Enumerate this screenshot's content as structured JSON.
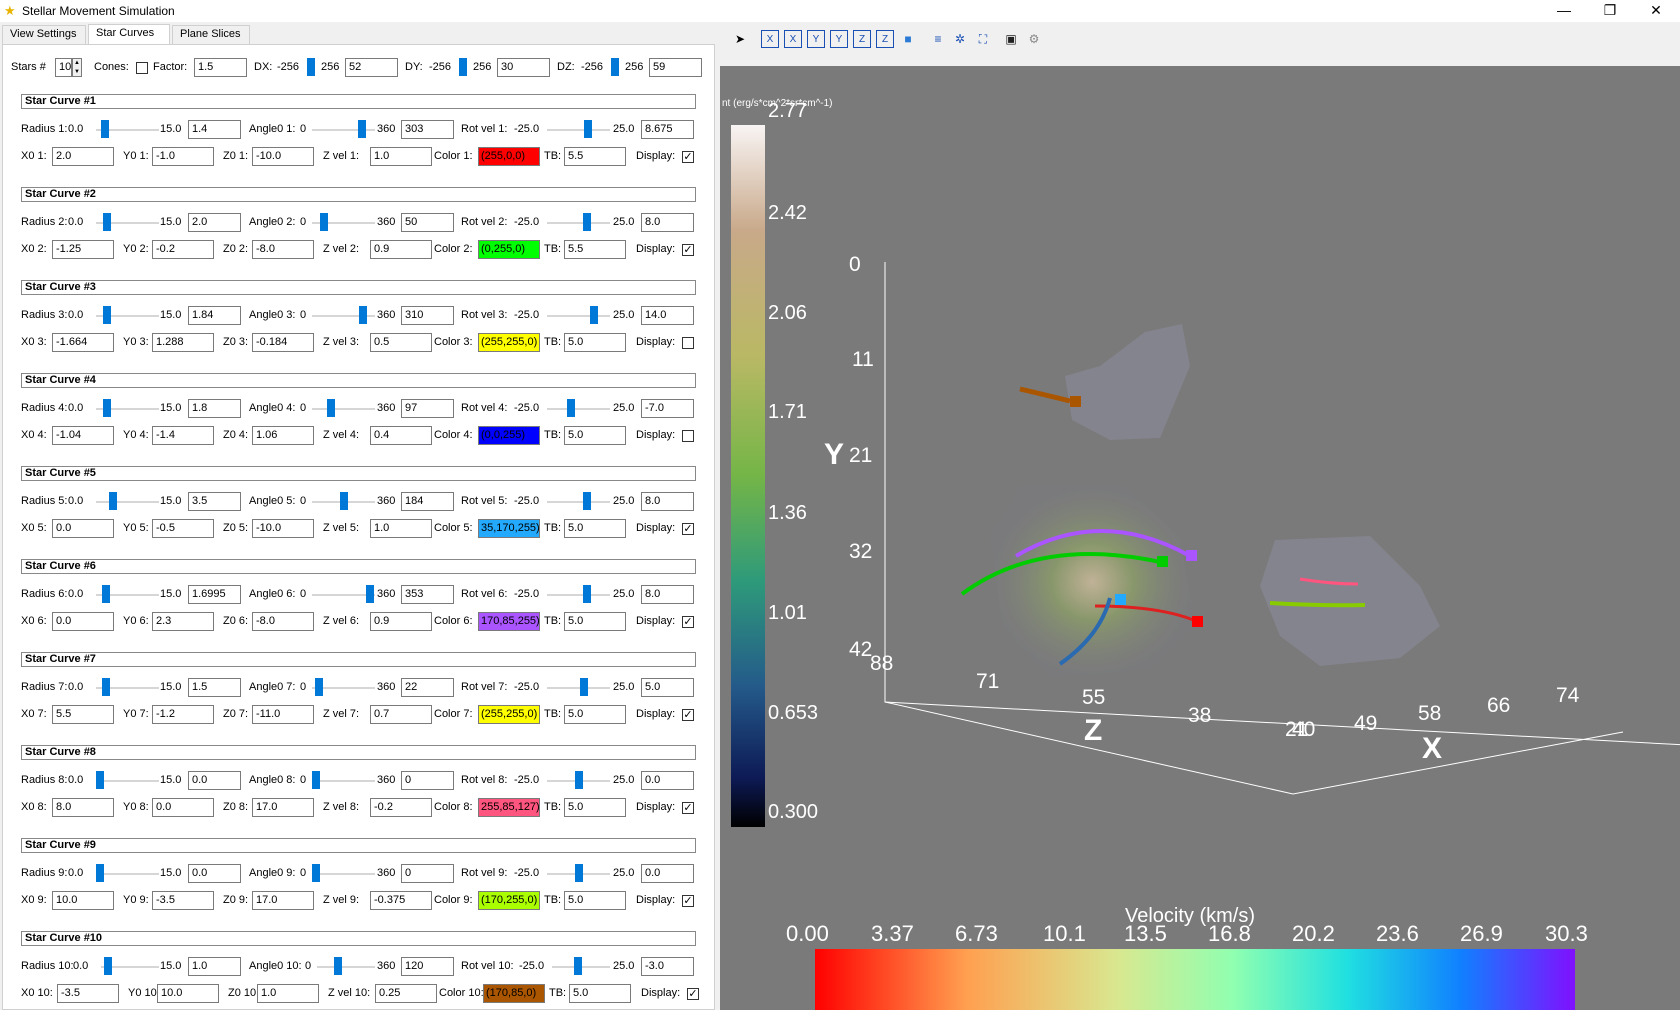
{
  "window": {
    "title": "Stellar Movement Simulation",
    "minimize": "—",
    "restore": "❐",
    "close": "✕"
  },
  "tabs": [
    "View Settings",
    "Star Curves",
    "Plane Slices"
  ],
  "top": {
    "stars_label": "Stars #",
    "stars": "10",
    "cones_label": "Cones:",
    "factor_label": "Factor:",
    "factor": "1.5",
    "dx_label": "DX:",
    "dy_label": "DY:",
    "dz_label": "DZ:",
    "min": "-256",
    "max": "256",
    "dx": "52",
    "dy": "30",
    "dz": "59"
  },
  "curves": [
    {
      "title": "Star Curve #1",
      "n": "1",
      "radius": "1.4",
      "angle": "303",
      "rotvel": "8.675",
      "x0": "2.0",
      "y0": "-1.0",
      "z0": "-10.0",
      "zvel": "1.0",
      "color": "(255,0,0)",
      "hex": "#ff0000",
      "tb": "5.5",
      "display": "✓",
      "r_pos": 0.093,
      "a_pos": 0.842,
      "v_pos": 0.674
    },
    {
      "title": "Star Curve #2",
      "n": "2",
      "radius": "2.0",
      "angle": "50",
      "rotvel": "8.0",
      "x0": "-1.25",
      "y0": "-0.2",
      "z0": "-8.0",
      "zvel": "0.9",
      "color": "(0,255,0)",
      "hex": "#00ff00",
      "tb": "5.5",
      "display": "✓",
      "r_pos": 0.133,
      "a_pos": 0.139,
      "v_pos": 0.66
    },
    {
      "title": "Star Curve #3",
      "n": "3",
      "radius": "1.84",
      "angle": "310",
      "rotvel": "14.0",
      "x0": "-1.664",
      "y0": "1.288",
      "z0": "-0.184",
      "zvel": "0.5",
      "color": "(255,255,0)",
      "hex": "#ffff00",
      "tb": "5.0",
      "display": "",
      "r_pos": 0.123,
      "a_pos": 0.861,
      "v_pos": 0.78
    },
    {
      "title": "Star Curve #4",
      "n": "4",
      "radius": "1.8",
      "angle": "97",
      "rotvel": "-7.0",
      "x0": "-1.04",
      "y0": "-1.4",
      "z0": "1.06",
      "zvel": "0.4",
      "color": "(0,0,255)",
      "hex": "#0000ff",
      "tb": "5.0",
      "display": "",
      "r_pos": 0.12,
      "a_pos": 0.269,
      "v_pos": 0.36
    },
    {
      "title": "Star Curve #5",
      "n": "5",
      "radius": "3.5",
      "angle": "184",
      "rotvel": "8.0",
      "x0": "0.0",
      "y0": "-0.5",
      "z0": "-10.0",
      "zvel": "1.0",
      "color": "35,170,255)",
      "hex": "#23aaff",
      "tb": "5.0",
      "display": "✓",
      "r_pos": 0.233,
      "a_pos": 0.511,
      "v_pos": 0.66
    },
    {
      "title": "Star Curve #6",
      "n": "6",
      "radius": "1.6995",
      "angle": "353",
      "rotvel": "8.0",
      "x0": "0.0",
      "y0": "2.3",
      "z0": "-8.0",
      "zvel": "0.9",
      "color": "170,85,255)",
      "hex": "#aa55ff",
      "tb": "5.0",
      "display": "✓",
      "r_pos": 0.113,
      "a_pos": 0.981,
      "v_pos": 0.66
    },
    {
      "title": "Star Curve #7",
      "n": "7",
      "radius": "1.5",
      "angle": "22",
      "rotvel": "5.0",
      "x0": "5.5",
      "y0": "-1.2",
      "z0": "-11.0",
      "zvel": "0.7",
      "color": "(255,255,0)",
      "hex": "#ffff00",
      "tb": "5.0",
      "display": "✓",
      "r_pos": 0.1,
      "a_pos": 0.061,
      "v_pos": 0.6
    },
    {
      "title": "Star Curve #8",
      "n": "8",
      "radius": "0.0",
      "angle": "0",
      "rotvel": "0.0",
      "x0": "8.0",
      "y0": "0.0",
      "z0": "17.0",
      "zvel": "-0.2",
      "color": "255,85,127)",
      "hex": "#ff557f",
      "tb": "5.0",
      "display": "✓",
      "r_pos": 0.0,
      "a_pos": 0.0,
      "v_pos": 0.5
    },
    {
      "title": "Star Curve #9",
      "n": "9",
      "radius": "0.0",
      "angle": "0",
      "rotvel": "0.0",
      "x0": "10.0",
      "y0": "-3.5",
      "z0": "17.0",
      "zvel": "-0.375",
      "color": "(170,255,0)",
      "hex": "#aaff00",
      "tb": "5.0",
      "display": "✓",
      "r_pos": 0.0,
      "a_pos": 0.0,
      "v_pos": 0.5
    },
    {
      "title": "Star Curve #10",
      "n": "10",
      "radius": "1.0",
      "angle": "120",
      "rotvel": "-3.0",
      "x0": "-3.5",
      "y0": "10.0",
      "z0": "1.0",
      "zvel": "0.25",
      "color": "(170,85,0)",
      "hex": "#aa5500",
      "tb": "5.0",
      "display": "✓",
      "r_pos": 0.067,
      "a_pos": 0.333,
      "v_pos": 0.44
    }
  ],
  "labels": {
    "radius_min": "0.0",
    "radius_max": "15.0",
    "angle_min": "0",
    "angle_max": "360",
    "rot_min": "-25.0",
    "rot_max": "25.0"
  },
  "colorbar": {
    "title": "nt (erg/s*cm^2*sr*cm^-1)",
    "ticks": [
      "2.77",
      "2.42",
      "2.06",
      "1.71",
      "1.36",
      "1.01",
      "0.653",
      "0.300"
    ]
  },
  "velocity": {
    "title": "Velocity (km/s)",
    "ticks": [
      "0.00",
      "3.37",
      "6.73",
      "10.1",
      "13.5",
      "16.8",
      "20.2",
      "23.6",
      "26.9",
      "30.3"
    ]
  },
  "axes": {
    "y_label": "Y",
    "z_label": "Z",
    "x_label": "X",
    "y_ticks": [
      "0",
      "11",
      "21",
      "32",
      "42"
    ],
    "z_ticks": [
      "88",
      "71",
      "55",
      "38",
      "21"
    ],
    "x_ticks": [
      "40",
      "49",
      "58",
      "66",
      "74"
    ]
  }
}
